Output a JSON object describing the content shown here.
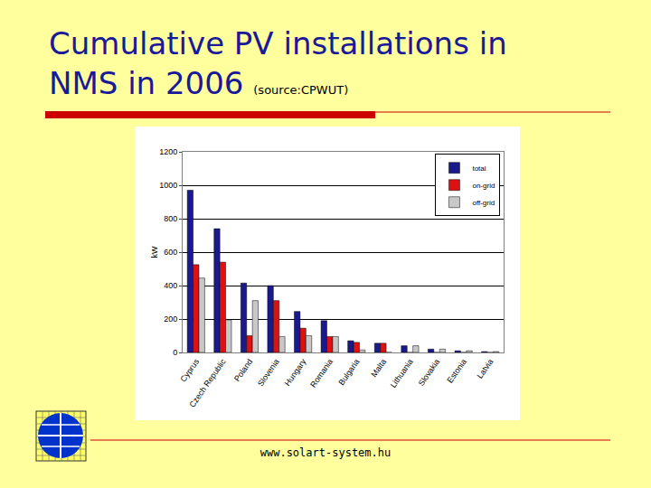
{
  "slide": {
    "title_lines": [
      "Cumulative PV installations in",
      "NMS in 2006"
    ],
    "source": "(source:CPWUT)",
    "footer": "www.solart-system.hu"
  },
  "chart_data": {
    "type": "bar",
    "categories": [
      "Cyprus",
      "Czech Republic",
      "Poland",
      "Slovenia",
      "Hungary",
      "Romania",
      "Bulgaria",
      "Malta",
      "Lithuania",
      "Slovakia",
      "Estonia",
      "Latvia"
    ],
    "series": [
      {
        "name": "total",
        "color": "#1a1a8c",
        "values": [
          970,
          740,
          415,
          400,
          245,
          190,
          70,
          55,
          40,
          20,
          10,
          5
        ]
      },
      {
        "name": "on-grid",
        "color": "#dd1111",
        "values": [
          525,
          540,
          100,
          310,
          145,
          95,
          60,
          55,
          0,
          0,
          0,
          0
        ]
      },
      {
        "name": "off-grid",
        "color": "#c8c8c8",
        "values": [
          445,
          195,
          310,
          95,
          100,
          95,
          15,
          0,
          40,
          20,
          10,
          5
        ]
      }
    ],
    "y_label": "kW",
    "ylim": [
      0,
      1200
    ],
    "yticks": [
      0,
      200,
      400,
      600,
      800,
      1000,
      1200
    ],
    "grid": true,
    "legend": "top-right"
  }
}
